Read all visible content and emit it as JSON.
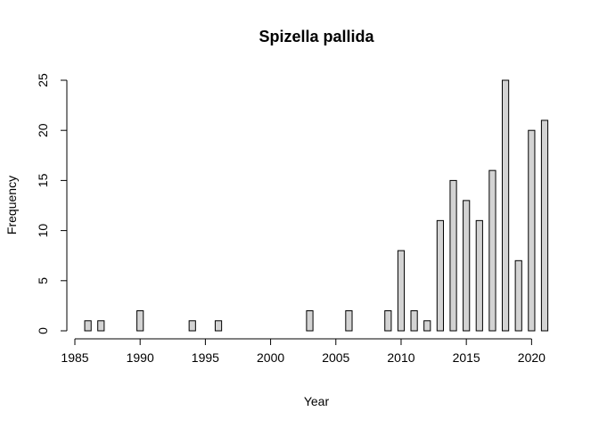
{
  "chart_data": {
    "type": "bar",
    "title": "Spizella pallida",
    "xlabel": "Year",
    "ylabel": "Frequency",
    "xlim": [
      1985,
      2021
    ],
    "ylim": [
      0,
      25
    ],
    "x_ticks": [
      1985,
      1990,
      1995,
      2000,
      2005,
      2010,
      2015,
      2020
    ],
    "y_ticks": [
      0,
      5,
      10,
      15,
      20,
      25
    ],
    "grid": false,
    "categories": [
      1986,
      1987,
      1988,
      1989,
      1990,
      1991,
      1992,
      1993,
      1994,
      1995,
      1996,
      1997,
      1998,
      1999,
      2000,
      2001,
      2002,
      2003,
      2004,
      2005,
      2006,
      2007,
      2008,
      2009,
      2010,
      2011,
      2012,
      2013,
      2014,
      2015,
      2016,
      2017,
      2018,
      2019,
      2020,
      2021
    ],
    "values": [
      1,
      1,
      0,
      0,
      2,
      0,
      0,
      0,
      1,
      0,
      1,
      0,
      0,
      0,
      0,
      0,
      0,
      2,
      0,
      0,
      2,
      0,
      0,
      2,
      8,
      2,
      1,
      11,
      15,
      13,
      11,
      16,
      25,
      7,
      20,
      21
    ],
    "bar_color": "#d3d3d3",
    "edge_color": "#000000"
  }
}
